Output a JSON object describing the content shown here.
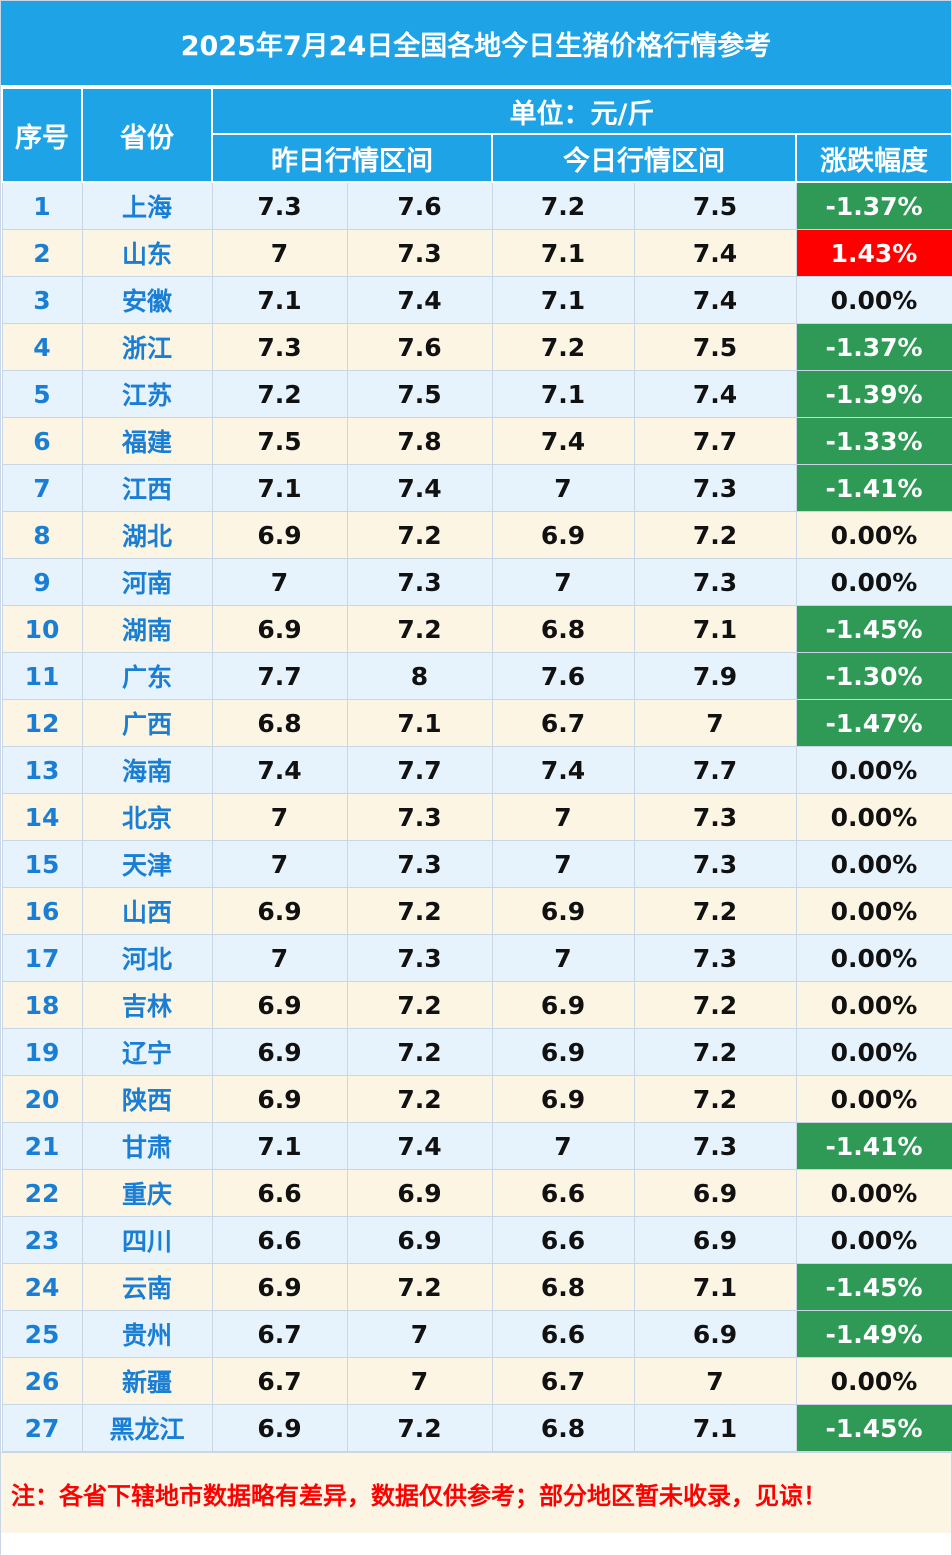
{
  "title": "2025年7月24日全国各地今日生猪价格行情参考",
  "headers": {
    "index": "序号",
    "province": "省份",
    "unit": "单位：元/斤",
    "yesterday": "昨日行情区间",
    "today": "今日行情区间",
    "change": "涨跌幅度"
  },
  "colors": {
    "header_bg": "#1da3e6",
    "row_blue": "#e6f3fd",
    "row_cream": "#fdf5e3",
    "up": "#ff0000",
    "down": "#2e9a55",
    "label_blue": "#1a7fd4"
  },
  "rows": [
    {
      "idx": "1",
      "prov": "上海",
      "y_low": "7.3",
      "y_high": "7.6",
      "t_low": "7.2",
      "t_high": "7.5",
      "change": "-1.37%",
      "trend": "down"
    },
    {
      "idx": "2",
      "prov": "山东",
      "y_low": "7",
      "y_high": "7.3",
      "t_low": "7.1",
      "t_high": "7.4",
      "change": "1.43%",
      "trend": "up"
    },
    {
      "idx": "3",
      "prov": "安徽",
      "y_low": "7.1",
      "y_high": "7.4",
      "t_low": "7.1",
      "t_high": "7.4",
      "change": "0.00%",
      "trend": "flat"
    },
    {
      "idx": "4",
      "prov": "浙江",
      "y_low": "7.3",
      "y_high": "7.6",
      "t_low": "7.2",
      "t_high": "7.5",
      "change": "-1.37%",
      "trend": "down"
    },
    {
      "idx": "5",
      "prov": "江苏",
      "y_low": "7.2",
      "y_high": "7.5",
      "t_low": "7.1",
      "t_high": "7.4",
      "change": "-1.39%",
      "trend": "down"
    },
    {
      "idx": "6",
      "prov": "福建",
      "y_low": "7.5",
      "y_high": "7.8",
      "t_low": "7.4",
      "t_high": "7.7",
      "change": "-1.33%",
      "trend": "down"
    },
    {
      "idx": "7",
      "prov": "江西",
      "y_low": "7.1",
      "y_high": "7.4",
      "t_low": "7",
      "t_high": "7.3",
      "change": "-1.41%",
      "trend": "down"
    },
    {
      "idx": "8",
      "prov": "湖北",
      "y_low": "6.9",
      "y_high": "7.2",
      "t_low": "6.9",
      "t_high": "7.2",
      "change": "0.00%",
      "trend": "flat"
    },
    {
      "idx": "9",
      "prov": "河南",
      "y_low": "7",
      "y_high": "7.3",
      "t_low": "7",
      "t_high": "7.3",
      "change": "0.00%",
      "trend": "flat"
    },
    {
      "idx": "10",
      "prov": "湖南",
      "y_low": "6.9",
      "y_high": "7.2",
      "t_low": "6.8",
      "t_high": "7.1",
      "change": "-1.45%",
      "trend": "down"
    },
    {
      "idx": "11",
      "prov": "广东",
      "y_low": "7.7",
      "y_high": "8",
      "t_low": "7.6",
      "t_high": "7.9",
      "change": "-1.30%",
      "trend": "down"
    },
    {
      "idx": "12",
      "prov": "广西",
      "y_low": "6.8",
      "y_high": "7.1",
      "t_low": "6.7",
      "t_high": "7",
      "change": "-1.47%",
      "trend": "down"
    },
    {
      "idx": "13",
      "prov": "海南",
      "y_low": "7.4",
      "y_high": "7.7",
      "t_low": "7.4",
      "t_high": "7.7",
      "change": "0.00%",
      "trend": "flat"
    },
    {
      "idx": "14",
      "prov": "北京",
      "y_low": "7",
      "y_high": "7.3",
      "t_low": "7",
      "t_high": "7.3",
      "change": "0.00%",
      "trend": "flat"
    },
    {
      "idx": "15",
      "prov": "天津",
      "y_low": "7",
      "y_high": "7.3",
      "t_low": "7",
      "t_high": "7.3",
      "change": "0.00%",
      "trend": "flat"
    },
    {
      "idx": "16",
      "prov": "山西",
      "y_low": "6.9",
      "y_high": "7.2",
      "t_low": "6.9",
      "t_high": "7.2",
      "change": "0.00%",
      "trend": "flat"
    },
    {
      "idx": "17",
      "prov": "河北",
      "y_low": "7",
      "y_high": "7.3",
      "t_low": "7",
      "t_high": "7.3",
      "change": "0.00%",
      "trend": "flat"
    },
    {
      "idx": "18",
      "prov": "吉林",
      "y_low": "6.9",
      "y_high": "7.2",
      "t_low": "6.9",
      "t_high": "7.2",
      "change": "0.00%",
      "trend": "flat"
    },
    {
      "idx": "19",
      "prov": "辽宁",
      "y_low": "6.9",
      "y_high": "7.2",
      "t_low": "6.9",
      "t_high": "7.2",
      "change": "0.00%",
      "trend": "flat"
    },
    {
      "idx": "20",
      "prov": "陕西",
      "y_low": "6.9",
      "y_high": "7.2",
      "t_low": "6.9",
      "t_high": "7.2",
      "change": "0.00%",
      "trend": "flat"
    },
    {
      "idx": "21",
      "prov": "甘肃",
      "y_low": "7.1",
      "y_high": "7.4",
      "t_low": "7",
      "t_high": "7.3",
      "change": "-1.41%",
      "trend": "down"
    },
    {
      "idx": "22",
      "prov": "重庆",
      "y_low": "6.6",
      "y_high": "6.9",
      "t_low": "6.6",
      "t_high": "6.9",
      "change": "0.00%",
      "trend": "flat"
    },
    {
      "idx": "23",
      "prov": "四川",
      "y_low": "6.6",
      "y_high": "6.9",
      "t_low": "6.6",
      "t_high": "6.9",
      "change": "0.00%",
      "trend": "flat"
    },
    {
      "idx": "24",
      "prov": "云南",
      "y_low": "6.9",
      "y_high": "7.2",
      "t_low": "6.8",
      "t_high": "7.1",
      "change": "-1.45%",
      "trend": "down"
    },
    {
      "idx": "25",
      "prov": "贵州",
      "y_low": "6.7",
      "y_high": "7",
      "t_low": "6.6",
      "t_high": "6.9",
      "change": "-1.49%",
      "trend": "down"
    },
    {
      "idx": "26",
      "prov": "新疆",
      "y_low": "6.7",
      "y_high": "7",
      "t_low": "6.7",
      "t_high": "7",
      "change": "0.00%",
      "trend": "flat"
    },
    {
      "idx": "27",
      "prov": "黑龙江",
      "y_low": "6.9",
      "y_high": "7.2",
      "t_low": "6.8",
      "t_high": "7.1",
      "change": "-1.45%",
      "trend": "down"
    }
  ],
  "note": "注：各省下辖地市数据略有差异，数据仅供参考；部分地区暂未收录，见谅！"
}
